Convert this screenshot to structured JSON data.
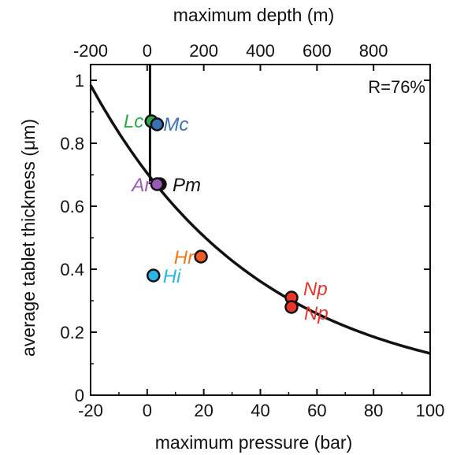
{
  "chart_data": {
    "type": "scatter",
    "xlabel": "maximum pressure (bar)",
    "ylabel": "average tablet thickness (μm)",
    "top_axis_label": "maximum depth (m)",
    "xlim": [
      -20,
      100
    ],
    "ylim": [
      0,
      1.05
    ],
    "x_ticks": [
      -20,
      0,
      20,
      40,
      60,
      80,
      100
    ],
    "x_tick_labels": [
      "-20",
      "0",
      "20",
      "40",
      "60",
      "80",
      "100"
    ],
    "y_ticks": [
      0,
      0.2,
      0.4,
      0.6,
      0.8,
      1
    ],
    "y_tick_labels": [
      "0",
      "0.2",
      "0.4",
      "0.6",
      "0.8",
      "1"
    ],
    "top_ticks_depth_m": [
      -200,
      0,
      200,
      400,
      600,
      800
    ],
    "top_tick_labels": [
      "-200",
      "0",
      "200",
      "400",
      "600",
      "800"
    ],
    "depth_to_pressure_bar_per_m": 0.1,
    "annotation": "R=76%",
    "points": [
      {
        "label": "Lc",
        "x": 1.5,
        "y": 0.87,
        "color": "#2ea84a",
        "label_color": "#2ea84a"
      },
      {
        "label": "Mc",
        "x": 3.5,
        "y": 0.86,
        "color": "#3b6fb6",
        "label_color": "#3b6fb6"
      },
      {
        "label": "Pm",
        "x": 4.5,
        "y": 0.67,
        "color": "#111111",
        "label_color": "#111111",
        "yerr": 0.02
      },
      {
        "label": "Ar",
        "x": 3.5,
        "y": 0.67,
        "color": "#9b59b6",
        "label_color": "#9b59b6"
      },
      {
        "label": "Hr",
        "x": 19,
        "y": 0.44,
        "color": "#f05a28",
        "label_color": "#f07a1a"
      },
      {
        "label": "Hi",
        "x": 2.2,
        "y": 0.38,
        "color": "#29b5e8",
        "label_color": "#29b5e8"
      },
      {
        "label": "Np",
        "x": 51,
        "y": 0.31,
        "color": "#e8352b",
        "label_color": "#e8352b",
        "yerr": 0.015
      },
      {
        "label": "Np",
        "x": 51,
        "y": 0.28,
        "color": "#e8352b",
        "label_color": "#e8352b"
      }
    ],
    "vertical_line_x": 1,
    "fit_curve": {
      "type": "exponential",
      "a": 0.705,
      "b": 0.0167
    }
  }
}
